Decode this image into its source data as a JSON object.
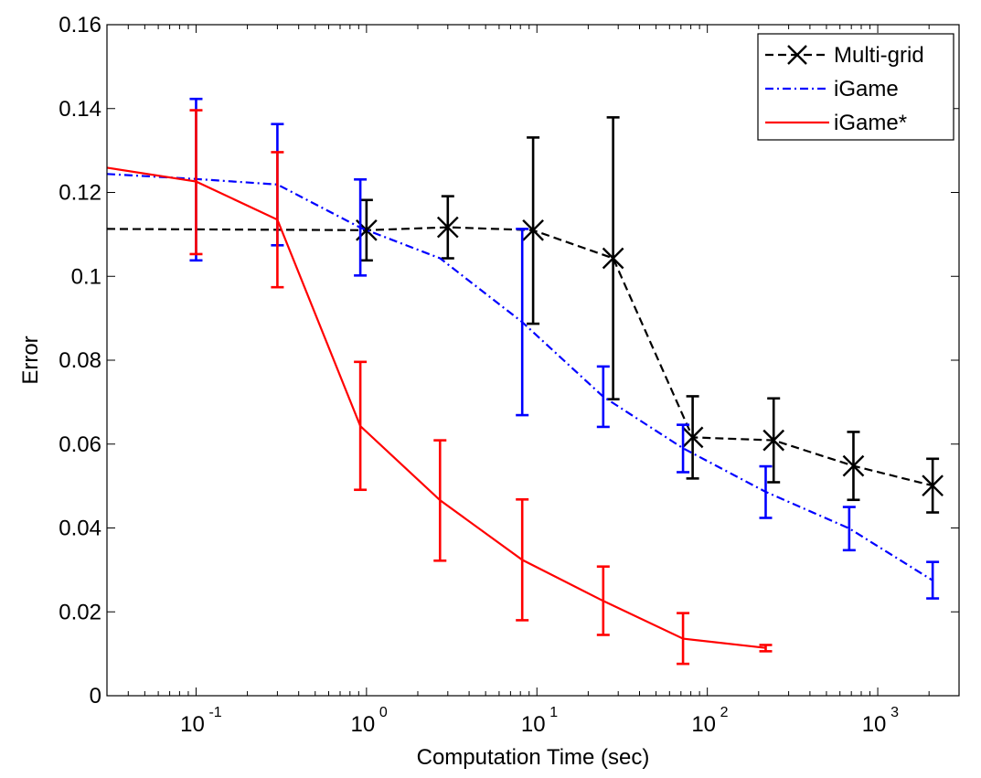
{
  "chart_data": {
    "type": "line",
    "xscale": "log",
    "xlabel": "Computation Time (sec)",
    "ylabel": "Error",
    "xlim": [
      0.03,
      3000
    ],
    "ylim": [
      0,
      0.16
    ],
    "x_ticks": [
      {
        "value": 0.1,
        "base": "10",
        "exp": "-1"
      },
      {
        "value": 1,
        "base": "10",
        "exp": "0"
      },
      {
        "value": 10,
        "base": "10",
        "exp": "1"
      },
      {
        "value": 100,
        "base": "10",
        "exp": "2"
      },
      {
        "value": 1000,
        "base": "10",
        "exp": "3"
      }
    ],
    "y_ticks": [
      {
        "value": 0,
        "label": "0"
      },
      {
        "value": 0.02,
        "label": "0.02"
      },
      {
        "value": 0.04,
        "label": "0.04"
      },
      {
        "value": 0.06,
        "label": "0.06"
      },
      {
        "value": 0.08,
        "label": "0.08"
      },
      {
        "value": 0.1,
        "label": "0.1"
      },
      {
        "value": 0.12,
        "label": "0.12"
      },
      {
        "value": 0.14,
        "label": "0.14"
      },
      {
        "value": 0.16,
        "label": "0.16"
      }
    ],
    "legend_position": "top-right",
    "series": [
      {
        "name": "Multi-grid",
        "color": "#000000",
        "dash": "dashed",
        "marker": "x",
        "points": [
          {
            "x": 0.03,
            "y": 0.1113
          },
          {
            "x": 1,
            "y": 0.111,
            "lo": 0.1038,
            "hi": 0.1182
          },
          {
            "x": 3,
            "y": 0.1117,
            "lo": 0.1043,
            "hi": 0.1191
          },
          {
            "x": 9.5,
            "y": 0.111,
            "lo": 0.0887,
            "hi": 0.1331
          },
          {
            "x": 28,
            "y": 0.1043,
            "lo": 0.0707,
            "hi": 0.1379
          },
          {
            "x": 82,
            "y": 0.0616,
            "lo": 0.0518,
            "hi": 0.0714
          },
          {
            "x": 245,
            "y": 0.0609,
            "lo": 0.0509,
            "hi": 0.0709
          },
          {
            "x": 720,
            "y": 0.0548,
            "lo": 0.0467,
            "hi": 0.0629
          },
          {
            "x": 2100,
            "y": 0.0501,
            "lo": 0.0437,
            "hi": 0.0565
          }
        ]
      },
      {
        "name": "iGame",
        "color": "#0000ff",
        "dash": "dashdot",
        "marker": "none",
        "points": [
          {
            "x": 0.03,
            "y": 0.1244
          },
          {
            "x": 0.1,
            "y": 0.1232,
            "lo": 0.1038,
            "hi": 0.1423
          },
          {
            "x": 0.3,
            "y": 0.1219,
            "lo": 0.1074,
            "hi": 0.1363
          },
          {
            "x": 0.92,
            "y": 0.1116,
            "lo": 0.1002,
            "hi": 0.1231
          },
          {
            "x": 2.7,
            "y": 0.1043
          },
          {
            "x": 8.2,
            "y": 0.0891,
            "lo": 0.0669,
            "hi": 0.1113
          },
          {
            "x": 24.5,
            "y": 0.0713,
            "lo": 0.0641,
            "hi": 0.0785
          },
          {
            "x": 72,
            "y": 0.059,
            "lo": 0.0533,
            "hi": 0.0646
          },
          {
            "x": 220,
            "y": 0.0486,
            "lo": 0.0424,
            "hi": 0.0547
          },
          {
            "x": 680,
            "y": 0.0399,
            "lo": 0.0347,
            "hi": 0.045
          },
          {
            "x": 2100,
            "y": 0.0275,
            "lo": 0.0232,
            "hi": 0.0319
          }
        ]
      },
      {
        "name": "iGame*",
        "color": "#ff0000",
        "dash": "solid",
        "marker": "none",
        "points": [
          {
            "x": 0.03,
            "y": 0.1259
          },
          {
            "x": 0.1,
            "y": 0.1226,
            "lo": 0.1053,
            "hi": 0.1396
          },
          {
            "x": 0.3,
            "y": 0.1135,
            "lo": 0.0974,
            "hi": 0.1296
          },
          {
            "x": 0.92,
            "y": 0.0643,
            "lo": 0.0491,
            "hi": 0.0796
          },
          {
            "x": 2.7,
            "y": 0.0466,
            "lo": 0.0322,
            "hi": 0.0609
          },
          {
            "x": 8.2,
            "y": 0.0324,
            "lo": 0.018,
            "hi": 0.0468
          },
          {
            "x": 24.5,
            "y": 0.0226,
            "lo": 0.0145,
            "hi": 0.0308
          },
          {
            "x": 72,
            "y": 0.0136,
            "lo": 0.0076,
            "hi": 0.0197
          },
          {
            "x": 220,
            "y": 0.0114,
            "lo": 0.0106,
            "hi": 0.0121
          }
        ]
      }
    ]
  }
}
